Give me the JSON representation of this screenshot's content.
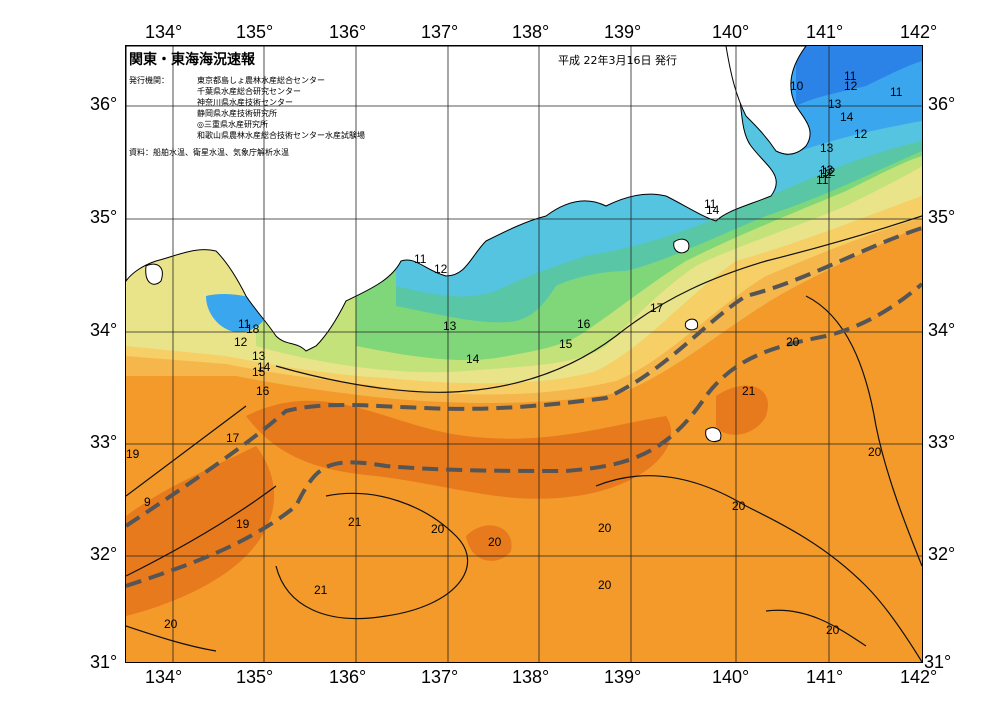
{
  "map": {
    "title": "関東・東海海況速報",
    "date": "平成 22年3月16日 発行",
    "issuer_label": "発行機関：",
    "issuers": [
      "東京都島しょ農林水産総合センター",
      "千葉県水産総合研究センター",
      "神奈川県水産技術センター",
      "静岡県水産技術研究所",
      "◎三重県水産研究所",
      "和歌山県農林水産総合技術センター水産試験場"
    ],
    "sources": "資料：船舶水温、衛星水温、気象庁解析水温",
    "lon_labels": [
      "134°",
      "135°",
      "136°",
      "137°",
      "138°",
      "139°",
      "140°",
      "141°",
      "142°"
    ],
    "lat_labels": [
      "36°",
      "35°",
      "34°",
      "33°",
      "32°",
      "31°"
    ],
    "contour_labels": [
      "10",
      "11",
      "12",
      "13",
      "14",
      "11",
      "12",
      "13",
      "12",
      "11",
      "12",
      "13",
      "14",
      "11",
      "11",
      "12",
      "13",
      "14",
      "15",
      "16",
      "17",
      "18",
      "11",
      "12",
      "13",
      "14",
      "15",
      "16",
      "17",
      "19",
      "9",
      "19",
      "21",
      "20",
      "20",
      "21",
      "20",
      "20",
      "20",
      "21",
      "20",
      "20",
      "20",
      "20"
    ],
    "colors": {
      "sst_20": "#f39a2a",
      "sst_21": "#e77a1c",
      "sst_19": "#f5b64b",
      "sst_18": "#f6cf66",
      "sst_17": "#e9e48a",
      "sst_16": "#c4e27a",
      "sst_15": "#7fd77a",
      "sst_14": "#59c7a6",
      "sst_13": "#55c4e0",
      "sst_12": "#3aa6ee",
      "sst_11": "#2b83e8",
      "land": "#ffffff",
      "kuroshio_axis": "#555555"
    }
  }
}
